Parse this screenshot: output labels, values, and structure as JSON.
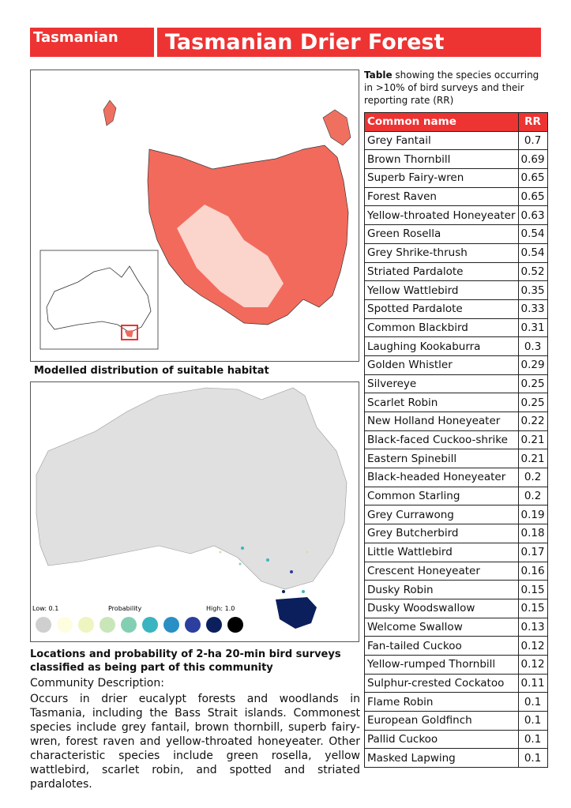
{
  "header": {
    "tag": "Tasmanian",
    "title": "Tasmanian Drier Forest"
  },
  "map1": {
    "caption": "Modelled distribution of suitable habitat"
  },
  "map2": {
    "legend": {
      "low": "Low: 0.1",
      "label": "Probability",
      "high": "High: 1.0"
    },
    "caption": "Locations and probability of 2-ha 20-min bird surveys classified as being part of this community"
  },
  "description": {
    "heading": "Community Description:",
    "text": "Occurs in drier eucalypt forests and woodlands in Tasmania, including the Bass Strait islands. Commonest species include grey fantail, brown thornbill, superb fairy-wren, forest raven and yellow-throated honeyeater. Other characteristic species include green rosella, yellow wattlebird, scarlet robin, and spotted and striated pardalotes."
  },
  "table": {
    "caption_bold": "Table",
    "caption": "showing the species occurring in >10% of bird surveys and their reporting rate (RR)",
    "columns": [
      "Common name",
      "RR"
    ],
    "rows": [
      [
        "Grey Fantail",
        0.7
      ],
      [
        "Brown Thornbill",
        0.69
      ],
      [
        "Superb Fairy-wren",
        0.65
      ],
      [
        "Forest Raven",
        0.65
      ],
      [
        "Yellow-throated Honeyeater",
        0.63
      ],
      [
        "Green Rosella",
        0.54
      ],
      [
        "Grey Shrike-thrush",
        0.54
      ],
      [
        "Striated Pardalote",
        0.52
      ],
      [
        "Yellow Wattlebird",
        0.35
      ],
      [
        "Spotted Pardalote",
        0.33
      ],
      [
        "Common Blackbird",
        0.31
      ],
      [
        "Laughing Kookaburra",
        0.3
      ],
      [
        "Golden Whistler",
        0.29
      ],
      [
        "Silvereye",
        0.25
      ],
      [
        "Scarlet Robin",
        0.25
      ],
      [
        "New Holland Honeyeater",
        0.22
      ],
      [
        "Black-faced Cuckoo-shrike",
        0.21
      ],
      [
        "Eastern Spinebill",
        0.21
      ],
      [
        "Black-headed Honeyeater",
        0.2
      ],
      [
        "Common Starling",
        0.2
      ],
      [
        "Grey Currawong",
        0.19
      ],
      [
        "Grey Butcherbird",
        0.18
      ],
      [
        "Little Wattlebird",
        0.17
      ],
      [
        "Crescent Honeyeater",
        0.16
      ],
      [
        "Dusky Robin",
        0.15
      ],
      [
        "Dusky Woodswallow",
        0.15
      ],
      [
        "Welcome Swallow",
        0.13
      ],
      [
        "Fan-tailed Cuckoo",
        0.12
      ],
      [
        "Yellow-rumped Thornbill",
        0.12
      ],
      [
        "Sulphur-crested Cockatoo",
        0.11
      ],
      [
        "Flame Robin",
        0.1
      ],
      [
        "European Goldfinch",
        0.1
      ],
      [
        "Pallid Cuckoo",
        0.1
      ],
      [
        "Masked Lapwing",
        0.1
      ]
    ]
  }
}
